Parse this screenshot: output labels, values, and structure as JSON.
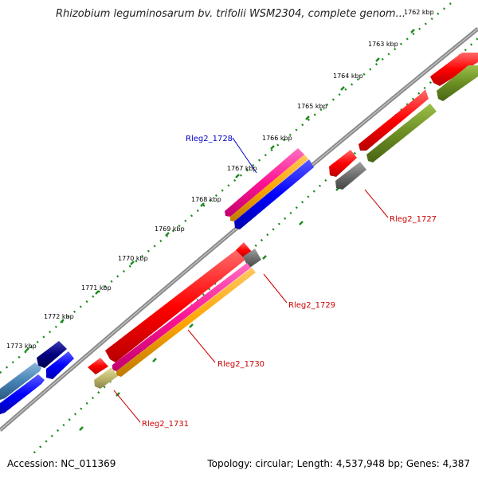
{
  "title": "Rhizobium leguminosarum bv. trifolii WSM2304, complete genom...",
  "title_overlap_tick": "1762 kbp",
  "ticks": [
    {
      "label": "1763 kbp"
    },
    {
      "label": "1764 kbp"
    },
    {
      "label": "1765 kbp"
    },
    {
      "label": "1766 kbp"
    },
    {
      "label": "1767 kbp"
    },
    {
      "label": "1768 kbp"
    },
    {
      "label": "1769 kbp"
    },
    {
      "label": "1770 kbp"
    },
    {
      "label": "1771 kbp"
    },
    {
      "label": "1772 kbp"
    },
    {
      "label": "1773 kbp"
    }
  ],
  "gene_labels": [
    {
      "name": "Rleg2_1728",
      "color": "#0000cc"
    },
    {
      "name": "Rleg2_1727",
      "color": "#cc0000"
    },
    {
      "name": "Rleg2_1729",
      "color": "#cc0000"
    },
    {
      "name": "Rleg2_1730",
      "color": "#cc0000"
    },
    {
      "name": "Rleg2_1731",
      "color": "#cc0000"
    }
  ],
  "footer": {
    "accession": "Accession: NC_011369",
    "topology": "Topology: circular; Length: 4,537,948 bp; Genes: 4,387"
  },
  "colors": {
    "backbone": "#8a8a8a",
    "tick": "#1e8a1e",
    "gene_red": "#ff0000",
    "gene_blue": "#0000ff",
    "gene_pink": "#ff1493",
    "gene_orange": "#ffa500",
    "gene_olive": "#6b8e23",
    "gene_gray": "#6e6e6e",
    "gene_navy": "#000080",
    "gene_steel": "#4682b4",
    "gene_khaki": "#bdb76b"
  }
}
